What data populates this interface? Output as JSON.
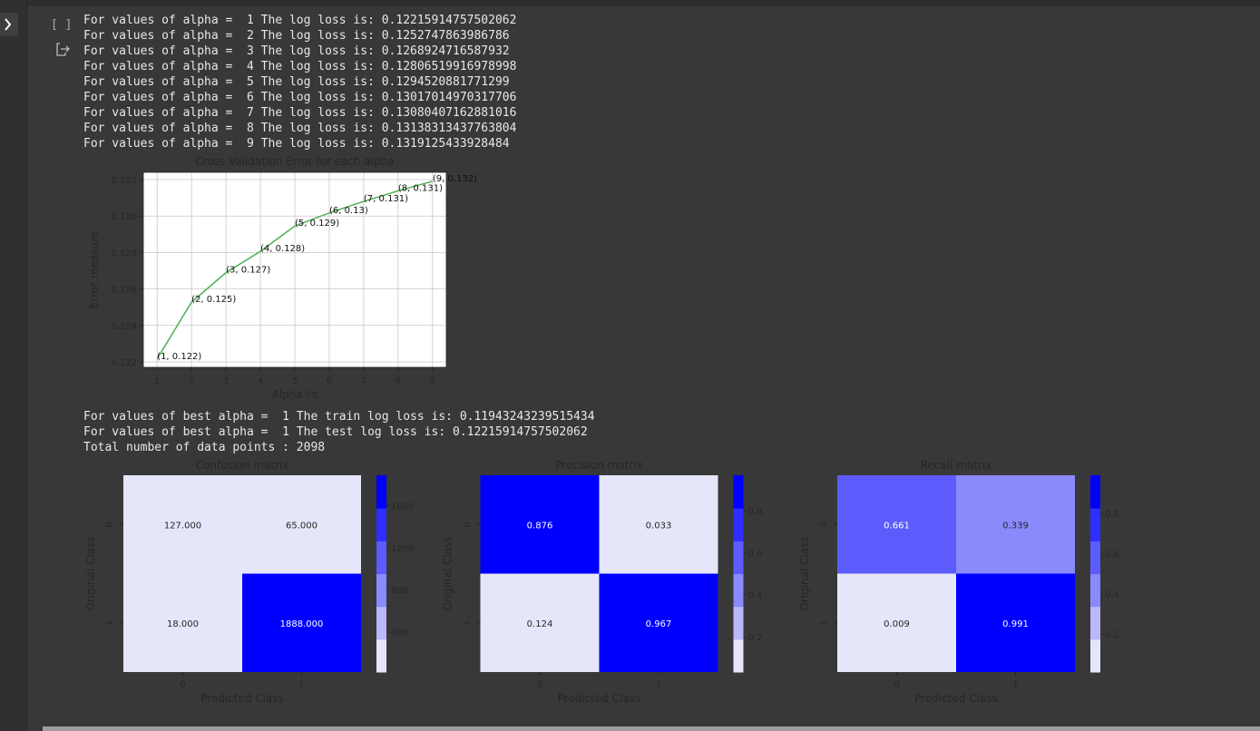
{
  "cell": {
    "bracket": "[ ]"
  },
  "output": {
    "lines_before": [
      "For values of alpha =  1 The log loss is: 0.12215914757502062",
      "For values of alpha =  2 The log loss is: 0.1252747863986786",
      "For values of alpha =  3 The log loss is: 0.1268924716587932",
      "For values of alpha =  4 The log loss is: 0.12806519916978998",
      "For values of alpha =  5 The log loss is: 0.1294520881771299",
      "For values of alpha =  6 The log loss is: 0.13017014970317706",
      "For values of alpha =  7 The log loss is: 0.13080407162881016",
      "For values of alpha =  8 The log loss is: 0.13138313437763804",
      "For values of alpha =  9 The log loss is: 0.1319125433928484"
    ],
    "lines_after": [
      "For values of best alpha =  1 The train log loss is: 0.11943243239515434",
      "For values of best alpha =  1 The test log loss is: 0.12215914757502062",
      "Total number of data points : 2098"
    ]
  },
  "chart_data": [
    {
      "type": "line",
      "title": "Cross Validation Error for each alpha",
      "x_label": "Alpha i's",
      "y_label": "Error measure",
      "x": [
        1,
        2,
        3,
        4,
        5,
        6,
        7,
        8,
        9
      ],
      "values": [
        0.12215914757502062,
        0.1252747863986786,
        0.1268924716587932,
        0.12806519916978998,
        0.1294520881771299,
        0.13017014970317706,
        0.13080407162881016,
        0.13138313437763804,
        0.1319125433928484
      ],
      "value_labels": [
        "(1, 0.122)",
        "(2, 0.125)",
        "(3, 0.127)",
        "(4, 0.128)",
        "(5, 0.129)",
        "(6, 0.13)",
        "(7, 0.131)",
        "(8, 0.131)",
        "(9, 0.132)"
      ],
      "color": "#4caf50",
      "xlim": [
        0.6,
        9.4
      ],
      "ylim": [
        0.1217,
        0.1324
      ],
      "xticks": [
        1,
        2,
        3,
        4,
        5,
        6,
        7,
        8,
        9
      ],
      "yticks": [
        0.122,
        0.124,
        0.126,
        0.128,
        {
          "value": 0.13,
          "label": "0.130"
        },
        0.132
      ],
      "grid": true
    },
    {
      "type": "heatmap",
      "title": "Confusion matrix",
      "x_label": "Predicted Class",
      "y_label": "Original Class",
      "x_categories": [
        "0",
        "1"
      ],
      "y_categories": [
        "0",
        "1"
      ],
      "values": [
        [
          127,
          65
        ],
        [
          18,
          1888
        ]
      ],
      "value_labels": [
        [
          "127.000",
          "65.000"
        ],
        [
          "18.000",
          "1888.000"
        ]
      ],
      "colors": [
        "#e6e6fa",
        "#b8b8fb",
        "#8a8afc",
        "#5c5cfd",
        "#2e2efe",
        "#0000ff"
      ],
      "clim": [
        18,
        1888
      ],
      "cticks": [
        400,
        800,
        1200,
        1600
      ]
    },
    {
      "type": "heatmap",
      "title": "Precision matrix",
      "x_label": "Predicted Class",
      "y_label": "Original Class",
      "x_categories": [
        "0",
        "1"
      ],
      "y_categories": [
        "0",
        "1"
      ],
      "values": [
        [
          0.876,
          0.033
        ],
        [
          0.124,
          0.967
        ]
      ],
      "colors": [
        "#e6e6fa",
        "#b8b8fb",
        "#8a8afc",
        "#5c5cfd",
        "#2e2efe",
        "#0000ff"
      ],
      "clim": [
        0.033,
        0.967
      ],
      "cticks": [
        0.2,
        0.4,
        0.6,
        0.8
      ]
    },
    {
      "type": "heatmap",
      "title": "Recall matrix",
      "x_label": "Predicted Class",
      "y_label": "Original Class",
      "x_categories": [
        "0",
        "1"
      ],
      "y_categories": [
        "0",
        "1"
      ],
      "values": [
        [
          0.661,
          0.339
        ],
        [
          0.009,
          0.991
        ]
      ],
      "colors": [
        "#e6e6fa",
        "#b8b8fb",
        "#8a8afc",
        "#5c5cfd",
        "#2e2efe",
        "#0000ff"
      ],
      "clim": [
        0.009,
        0.991
      ],
      "cticks": [
        0.2,
        0.4,
        0.6,
        0.8
      ]
    }
  ]
}
